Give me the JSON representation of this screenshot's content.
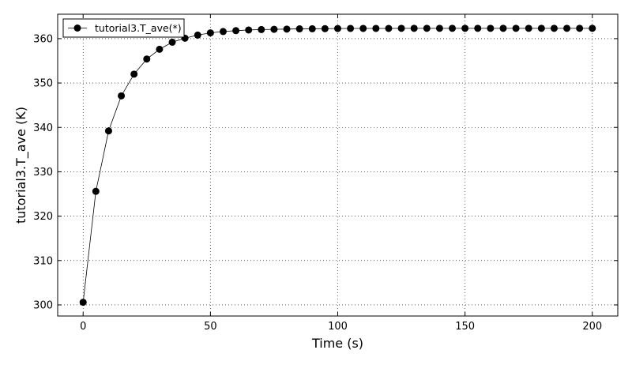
{
  "chart_data": {
    "type": "line",
    "xlabel": "Time (s)",
    "ylabel": "tutorial3.T_ave (K)",
    "xlim": [
      -10,
      210
    ],
    "ylim": [
      297.5,
      365.5
    ],
    "xticks": [
      0,
      50,
      100,
      150,
      200
    ],
    "yticks": [
      300,
      310,
      320,
      330,
      340,
      350,
      360
    ],
    "grid": true,
    "legend_position": "top-left",
    "series": [
      {
        "name": "tutorial3.T_ave(*)",
        "color": "#000000",
        "marker": "circle",
        "x": [
          0,
          5,
          10,
          15,
          20,
          25,
          30,
          35,
          40,
          45,
          50,
          55,
          60,
          65,
          70,
          75,
          80,
          85,
          90,
          95,
          100,
          105,
          110,
          115,
          120,
          125,
          130,
          135,
          140,
          145,
          150,
          155,
          160,
          165,
          170,
          175,
          180,
          185,
          190,
          195,
          200
        ],
        "y": [
          300.6,
          325.6,
          339.2,
          347.1,
          352.0,
          355.4,
          357.6,
          359.2,
          360.1,
          360.8,
          361.3,
          361.6,
          361.8,
          361.95,
          362.05,
          362.1,
          362.15,
          362.2,
          362.22,
          362.25,
          362.28,
          362.3,
          362.3,
          362.3,
          362.3,
          362.32,
          362.32,
          362.32,
          362.32,
          362.32,
          362.32,
          362.32,
          362.32,
          362.32,
          362.32,
          362.32,
          362.32,
          362.32,
          362.32,
          362.32,
          362.32
        ]
      }
    ]
  }
}
